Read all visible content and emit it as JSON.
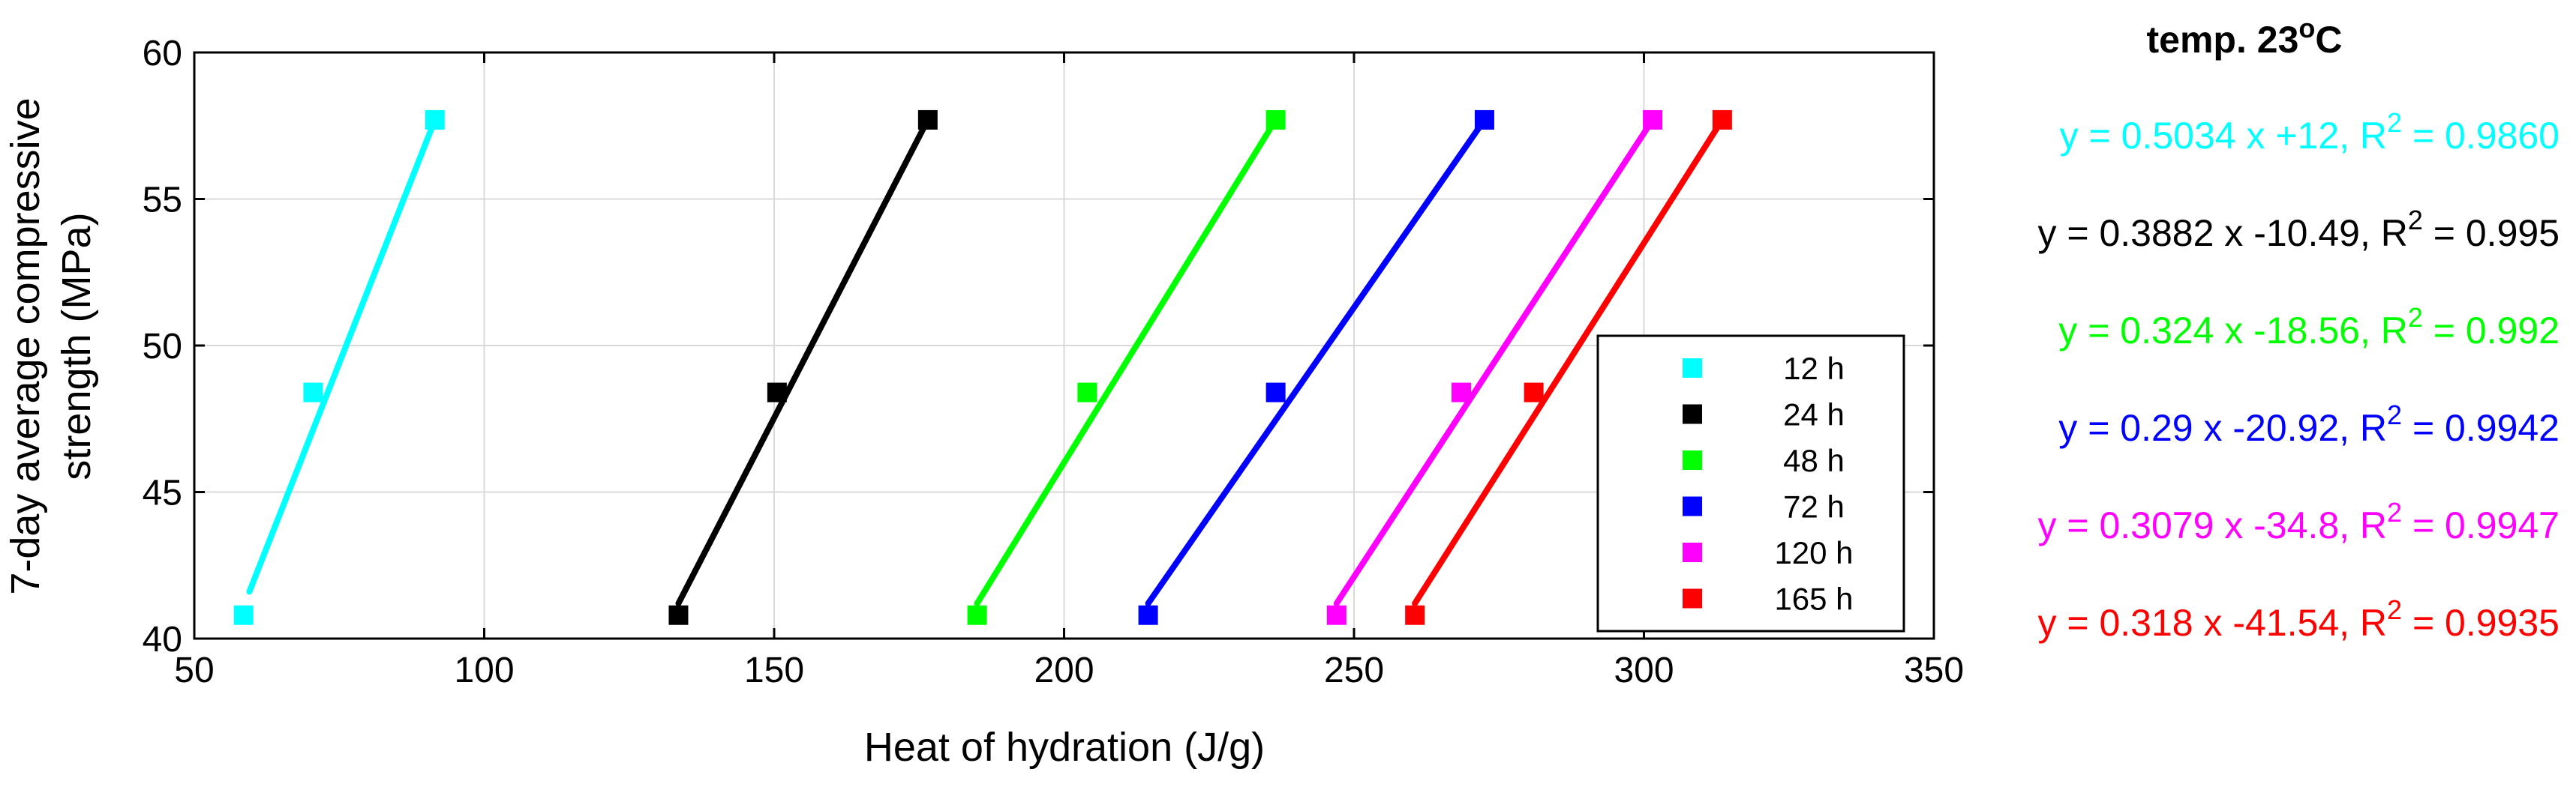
{
  "chart_data": {
    "type": "scatter",
    "title": "temp. 23",
    "title_superscript": "o",
    "title_unit": "C",
    "xlabel": "Heat of hydration (J/g)",
    "ylabel_line1": "7-day average compressive",
    "ylabel_line2": "strength (MPa)",
    "xlim": [
      50,
      350
    ],
    "ylim": [
      40,
      60
    ],
    "xticks": [
      50,
      100,
      150,
      200,
      250,
      300,
      350
    ],
    "yticks": [
      40,
      45,
      50,
      55,
      60
    ],
    "grid": true,
    "legend_position": "bottom-right",
    "series": [
      {
        "name": "12 h",
        "color": "#00ffff",
        "x": [
          58.5,
          70.5,
          91.5
        ],
        "y": [
          40.8,
          48.4,
          57.7
        ],
        "fit": {
          "x_start": 59.5,
          "y_start": 41.6,
          "x_end": 91.5,
          "y_end": 57.7
        },
        "eq_main": "y = 0.5034 x +12, R",
        "eq_sup": "2",
        "eq_val": " = 0.9860"
      },
      {
        "name": "24 h",
        "color": "#000000",
        "x": [
          133.5,
          150.5,
          176.5
        ],
        "y": [
          40.8,
          48.4,
          57.7
        ],
        "fit": {
          "x_start": 133.5,
          "y_start": 41.2,
          "x_end": 176.5,
          "y_end": 57.7
        },
        "eq_main": "y = 0.3882 x -10.49, R",
        "eq_sup": "2",
        "eq_val": " = 0.995"
      },
      {
        "name": "48 h",
        "color": "#00ff00",
        "x": [
          185,
          204,
          236.5
        ],
        "y": [
          40.8,
          48.4,
          57.7
        ],
        "fit": {
          "x_start": 185,
          "y_start": 41.2,
          "x_end": 236.5,
          "y_end": 57.7
        },
        "eq_main": "y = 0.324 x -18.56, R",
        "eq_sup": "2",
        "eq_val": " = 0.992"
      },
      {
        "name": "72 h",
        "color": "#0000ff",
        "x": [
          214.5,
          236.5,
          272.5
        ],
        "y": [
          40.8,
          48.4,
          57.7
        ],
        "fit": {
          "x_start": 214.5,
          "y_start": 41.2,
          "x_end": 272.5,
          "y_end": 57.7
        },
        "eq_main": "y = 0.29 x -20.92, R",
        "eq_sup": "2",
        "eq_val": " = 0.9942"
      },
      {
        "name": "120 h",
        "color": "#ff00ff",
        "x": [
          247,
          268.5,
          301.5
        ],
        "y": [
          40.8,
          48.4,
          57.7
        ],
        "fit": {
          "x_start": 247,
          "y_start": 41.2,
          "x_end": 301.5,
          "y_end": 57.7
        },
        "eq_main": "y = 0.3079 x -34.8, R",
        "eq_sup": "2",
        "eq_val": " = 0.9947"
      },
      {
        "name": "165 h",
        "color": "#ff0000",
        "x": [
          260.5,
          281,
          313.5
        ],
        "y": [
          40.8,
          48.4,
          57.7
        ],
        "fit": {
          "x_start": 260.5,
          "y_start": 41.2,
          "x_end": 313.5,
          "y_end": 57.7
        },
        "eq_main": "y = 0.318 x -41.54, R",
        "eq_sup": "2",
        "eq_val": " = 0.9935"
      }
    ]
  }
}
